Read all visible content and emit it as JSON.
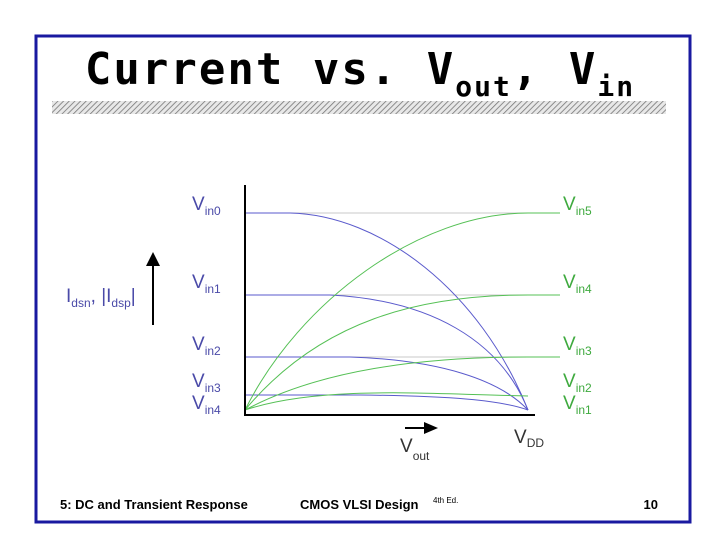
{
  "title": {
    "main": "Current vs. V",
    "sub1": "out",
    "mid": ", V",
    "sub2": "in"
  },
  "diagram": {
    "y_axis_label": {
      "i1": "I",
      "s1": "dsn",
      "mid": ", |I",
      "s2": "dsp",
      "end": "|"
    },
    "x_axis_label": {
      "main": "V",
      "sub": "out"
    },
    "vdd_label": {
      "main": "V",
      "sub": "DD"
    },
    "left_labels": [
      {
        "main": "V",
        "sub": "in0"
      },
      {
        "main": "V",
        "sub": "in1"
      },
      {
        "main": "V",
        "sub": "in2"
      },
      {
        "main": "V",
        "sub": "in3"
      },
      {
        "main": "V",
        "sub": "in4"
      }
    ],
    "right_labels": [
      {
        "main": "V",
        "sub": "in5"
      },
      {
        "main": "V",
        "sub": "in4"
      },
      {
        "main": "V",
        "sub": "in3"
      },
      {
        "main": "V",
        "sub": "in2"
      },
      {
        "main": "V",
        "sub": "in1"
      }
    ]
  },
  "footer": {
    "left": "5: DC and Transient Response",
    "center": "CMOS VLSI Design",
    "edition": "4th Ed.",
    "page": "10"
  }
}
